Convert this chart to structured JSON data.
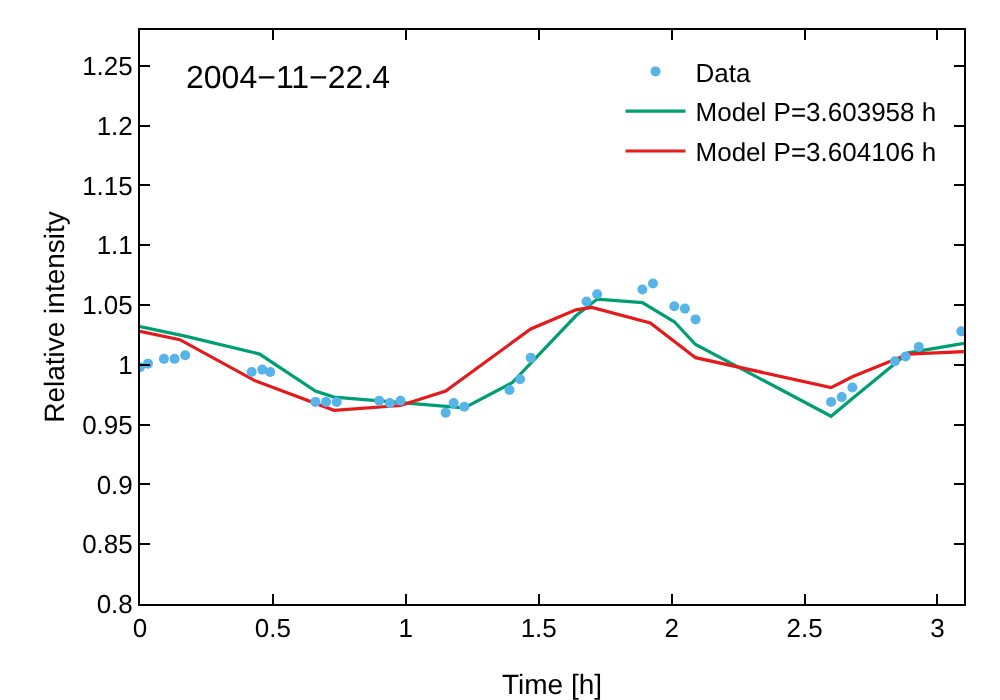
{
  "chart_data": {
    "type": "line",
    "xlabel": "Time [h]",
    "ylabel": "Relative intensity",
    "annotations": [
      "2004−11−22.4"
    ],
    "xlim": [
      0,
      3.1
    ],
    "xticks": [
      0,
      0.5,
      1,
      1.5,
      2,
      2.5,
      3
    ],
    "ylim": [
      0.8,
      1.28
    ],
    "yticks": [
      0.8,
      0.85,
      0.9,
      0.95,
      1,
      1.05,
      1.1,
      1.15,
      1.2,
      1.25
    ],
    "grid": false,
    "legend": "top right",
    "series": [
      {
        "name": "Data",
        "type": "scatter",
        "marker": "circle",
        "color": "#56b4e9",
        "x": [
          0,
          0.03,
          0.09,
          0.13,
          0.17,
          0.42,
          0.46,
          0.49,
          0.66,
          0.7,
          0.74,
          0.9,
          0.94,
          0.98,
          1.15,
          1.18,
          1.22,
          1.39,
          1.43,
          1.47,
          1.68,
          1.72,
          1.89,
          1.93,
          2.01,
          2.05,
          2.09,
          2.6,
          2.64,
          2.68,
          2.84,
          2.88,
          2.93,
          3.09
        ],
        "values": [
          0.998,
          1.001,
          1.005,
          1.005,
          1.008,
          0.994,
          0.996,
          0.994,
          0.969,
          0.969,
          0.969,
          0.97,
          0.968,
          0.97,
          0.96,
          0.968,
          0.965,
          0.979,
          0.988,
          1.006,
          1.053,
          1.059,
          1.063,
          1.068,
          1.049,
          1.047,
          1.038,
          0.969,
          0.973,
          0.981,
          1.003,
          1.007,
          1.015,
          1.028
        ]
      },
      {
        "name": "Model P=3.603958 h",
        "color": "#009e73",
        "x": [
          0,
          0.17,
          0.45,
          0.66,
          0.73,
          1.22,
          1.4,
          1.64,
          1.72,
          1.89,
          2.01,
          2.09,
          2.6,
          2.67,
          2.89,
          3.1
        ],
        "values": [
          1.032,
          1.024,
          1.009,
          0.978,
          0.973,
          0.964,
          0.985,
          1.041,
          1.055,
          1.052,
          1.036,
          1.017,
          0.957,
          0.97,
          1.01,
          1.018
        ]
      },
      {
        "name": "Model P=3.604106 h",
        "color": "#e41a1c",
        "x": [
          0,
          0.15,
          0.43,
          0.73,
          0.98,
          1.15,
          1.47,
          1.64,
          1.7,
          1.92,
          2.09,
          2.6,
          2.68,
          2.89,
          3.1
        ],
        "values": [
          1.028,
          1.021,
          0.987,
          0.962,
          0.966,
          0.978,
          1.03,
          1.046,
          1.048,
          1.035,
          1.006,
          0.981,
          0.99,
          1.009,
          1.011
        ]
      }
    ]
  }
}
